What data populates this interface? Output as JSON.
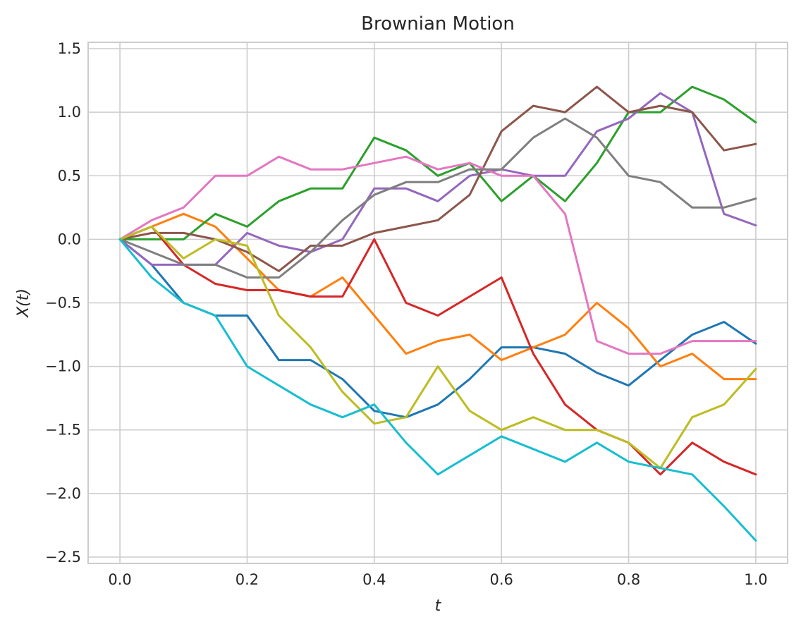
{
  "chart_data": {
    "type": "line",
    "title": "Brownian Motion",
    "xlabel": "t",
    "ylabel": "X(t)",
    "xlim": [
      -0.05,
      1.05
    ],
    "ylim": [
      -2.55,
      1.55
    ],
    "xticks": [
      0.0,
      0.2,
      0.4,
      0.6,
      0.8,
      1.0
    ],
    "xtick_labels": [
      "0.0",
      "0.2",
      "0.4",
      "0.6",
      "0.8",
      "1.0"
    ],
    "yticks": [
      1.5,
      1.0,
      0.5,
      0.0,
      -0.5,
      -1.0,
      -1.5,
      -2.0,
      -2.5
    ],
    "ytick_labels": [
      "1.5",
      "1.0",
      "0.5",
      "0.0",
      "−0.5",
      "−1.0",
      "−1.5",
      "−2.0",
      "−2.5"
    ],
    "grid": true,
    "legend": false,
    "x": [
      0.0,
      0.05,
      0.1,
      0.15,
      0.2,
      0.25,
      0.3,
      0.35,
      0.4,
      0.45,
      0.5,
      0.55,
      0.6,
      0.65,
      0.7,
      0.75,
      0.8,
      0.85,
      0.9,
      0.95,
      1.0
    ],
    "series": [
      {
        "color": "#1f77b4",
        "values": [
          0.0,
          -0.2,
          -0.5,
          -0.6,
          -0.6,
          -0.95,
          -0.95,
          -1.1,
          -1.35,
          -1.4,
          -1.3,
          -1.1,
          -0.85,
          -0.85,
          -0.9,
          -1.05,
          -1.15,
          -0.95,
          -0.75,
          -0.65,
          -0.82
        ]
      },
      {
        "color": "#ff7f0e",
        "values": [
          0.0,
          0.1,
          0.2,
          0.1,
          -0.15,
          -0.4,
          -0.45,
          -0.3,
          -0.6,
          -0.9,
          -0.8,
          -0.75,
          -0.95,
          -0.85,
          -0.75,
          -0.5,
          -0.7,
          -1.0,
          -0.9,
          -1.1,
          -1.1
        ]
      },
      {
        "color": "#2ca02c",
        "values": [
          0.0,
          0.0,
          0.0,
          0.2,
          0.1,
          0.3,
          0.4,
          0.4,
          0.8,
          0.7,
          0.5,
          0.6,
          0.3,
          0.5,
          0.3,
          0.6,
          1.0,
          1.0,
          1.2,
          1.1,
          0.92
        ]
      },
      {
        "color": "#d62728",
        "values": [
          0.0,
          0.1,
          -0.2,
          -0.35,
          -0.4,
          -0.4,
          -0.45,
          -0.45,
          0.0,
          -0.5,
          -0.6,
          -0.45,
          -0.3,
          -0.9,
          -1.3,
          -1.5,
          -1.6,
          -1.85,
          -1.6,
          -1.75,
          -1.85
        ]
      },
      {
        "color": "#9467bd",
        "values": [
          0.0,
          -0.2,
          -0.2,
          -0.2,
          0.05,
          -0.05,
          -0.1,
          0.0,
          0.4,
          0.4,
          0.3,
          0.5,
          0.55,
          0.5,
          0.5,
          0.85,
          0.95,
          1.15,
          1.0,
          0.2,
          0.11
        ]
      },
      {
        "color": "#8c564b",
        "values": [
          0.0,
          0.05,
          0.05,
          0.0,
          -0.1,
          -0.25,
          -0.05,
          -0.05,
          0.05,
          0.1,
          0.15,
          0.35,
          0.85,
          1.05,
          1.0,
          1.2,
          1.0,
          1.05,
          1.0,
          0.7,
          0.75
        ]
      },
      {
        "color": "#e377c2",
        "values": [
          0.0,
          0.15,
          0.25,
          0.5,
          0.5,
          0.65,
          0.55,
          0.55,
          0.6,
          0.65,
          0.55,
          0.6,
          0.5,
          0.5,
          0.2,
          -0.8,
          -0.9,
          -0.9,
          -0.8,
          -0.8,
          -0.8
        ]
      },
      {
        "color": "#7f7f7f",
        "values": [
          0.0,
          -0.1,
          -0.2,
          -0.2,
          -0.3,
          -0.3,
          -0.1,
          0.15,
          0.35,
          0.45,
          0.45,
          0.55,
          0.55,
          0.8,
          0.95,
          0.8,
          0.5,
          0.45,
          0.25,
          0.25,
          0.32
        ]
      },
      {
        "color": "#bcbd22",
        "values": [
          0.0,
          0.1,
          -0.15,
          0.0,
          -0.05,
          -0.6,
          -0.85,
          -1.2,
          -1.45,
          -1.4,
          -1.0,
          -1.35,
          -1.5,
          -1.4,
          -1.5,
          -1.5,
          -1.6,
          -1.8,
          -1.4,
          -1.3,
          -1.02
        ]
      },
      {
        "color": "#17becf",
        "values": [
          0.0,
          -0.3,
          -0.5,
          -0.6,
          -1.0,
          -1.15,
          -1.3,
          -1.4,
          -1.3,
          -1.6,
          -1.85,
          -1.7,
          -1.55,
          -1.65,
          -1.75,
          -1.6,
          -1.75,
          -1.8,
          -1.85,
          -2.1,
          -2.37
        ]
      }
    ]
  }
}
